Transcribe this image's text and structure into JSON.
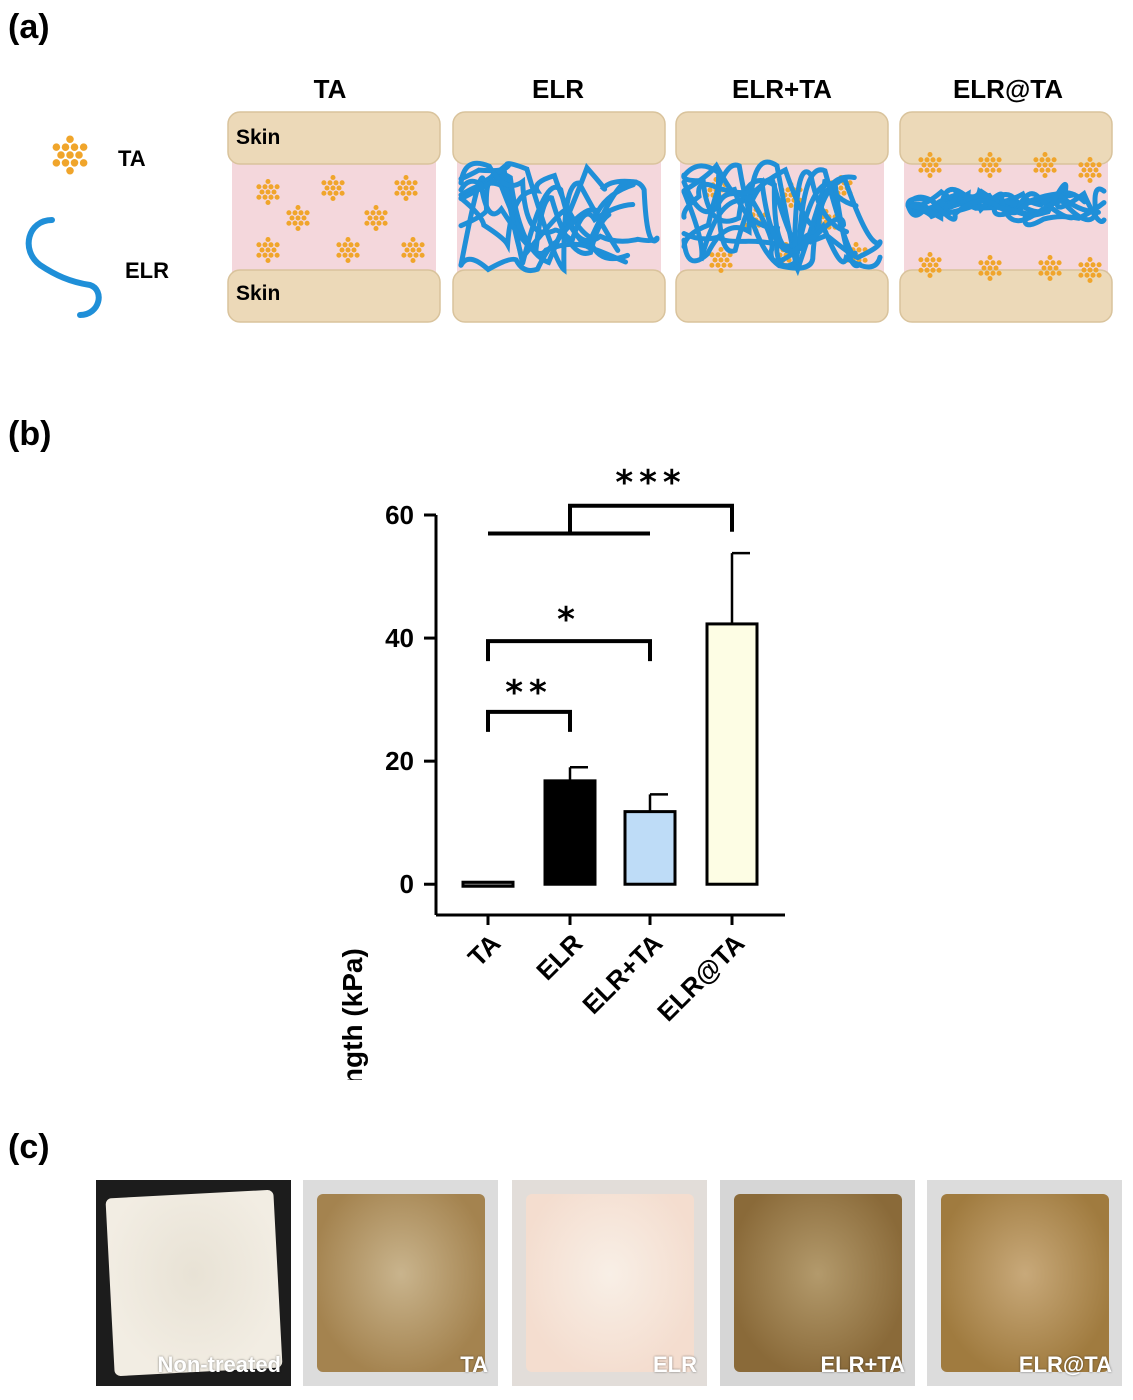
{
  "panels": {
    "a": "(a)",
    "b": "(b)",
    "c": "(c)"
  },
  "schematic": {
    "legend": {
      "ta_label": "TA",
      "elr_label": "ELR"
    },
    "skin_label": "Skin",
    "columns": [
      "TA",
      "ELR",
      "ELR+TA",
      "ELR@TA"
    ],
    "colors": {
      "skin": "#ecd9b8",
      "gap": "#f4d7dc",
      "ta": "#f0a52b",
      "elr": "#1f8fd8"
    }
  },
  "chart_data": {
    "type": "bar",
    "categories": [
      "TA",
      "ELR",
      "ELR+TA",
      "ELR@TA"
    ],
    "values": [
      0,
      16.8,
      11.8,
      42.3
    ],
    "errors": [
      0,
      2.2,
      2.8,
      11.5
    ],
    "colors": [
      "#808080",
      "#000000",
      "#bedcf7",
      "#fdfde4"
    ],
    "ylabel": "Adhesive Strength (kPa)",
    "ylim": [
      -5,
      60
    ],
    "yticks": [
      0,
      20,
      40,
      60
    ],
    "significance": [
      {
        "from": 0,
        "to": 1,
        "label": "**"
      },
      {
        "from": 0,
        "to": 2,
        "label": "*"
      },
      {
        "group": [
          0,
          2
        ],
        "to": 3,
        "label": "***"
      }
    ]
  },
  "photos": {
    "labels": [
      "Non-treated",
      "TA",
      "ELR",
      "ELR+TA",
      "ELR@TA"
    ]
  }
}
